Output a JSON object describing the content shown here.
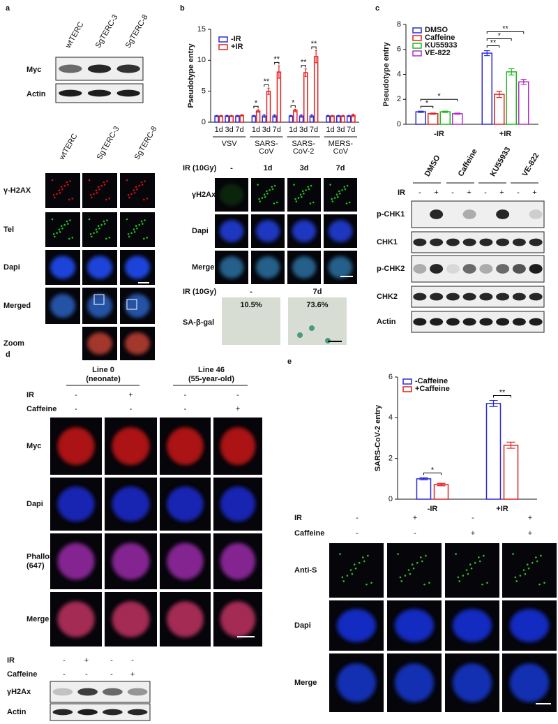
{
  "panels": {
    "a": {
      "letter": "a",
      "blot_columns": [
        "wtTERC",
        "SgTERC-3",
        "SgTERC-8"
      ],
      "blot_rows": [
        "Myc",
        "Actin"
      ],
      "image_columns": [
        "wtTERC",
        "SgTERC-3",
        "SgTERC-8"
      ],
      "image_rows": [
        "γ-H2AX",
        "Tel",
        "Dapi",
        "Merged",
        "Zoom"
      ]
    },
    "b": {
      "letter": "b",
      "ir_label": "IR (10Gy)",
      "ir_values": [
        "-",
        "1d",
        "3d",
        "7d"
      ],
      "image_rows": [
        "γH2Ax",
        "Dapi",
        "Merge"
      ],
      "sa_ir_label": "IR (10Gy)",
      "sa_ir_values": [
        "-",
        "7d"
      ],
      "sa_row": "SA-β-gal",
      "sa_percent": [
        "10.5%",
        "73.6%"
      ]
    },
    "c": {
      "letter": "c",
      "blot_columns": [
        "DMSO",
        "Caffeine",
        "KU55933",
        "VE-822"
      ],
      "ir_label": "IR",
      "ir_values": [
        "-",
        "+",
        "-",
        "+",
        "-",
        "+",
        "-",
        "+"
      ],
      "blot_rows": [
        "p-CHK1",
        "CHK1",
        "p-CHK2",
        "CHK2",
        "Actin"
      ]
    },
    "d": {
      "letter": "d",
      "headers": [
        {
          "line": "Line 0",
          "note": "(neonate)"
        },
        {
          "line": "Line 46",
          "note": "(55-year-old)"
        }
      ],
      "ir_label": "IR",
      "ir_values": [
        "-",
        "+",
        "-",
        "-"
      ],
      "caffeine_label": "Caffeine",
      "caffeine_values": [
        "-",
        "-",
        "-",
        "+"
      ],
      "image_rows": [
        [
          "Myc"
        ],
        [
          "Dapi"
        ],
        [
          "Phalloidin",
          "(647)"
        ],
        [
          "Merge"
        ]
      ],
      "blot_ir_label": "IR",
      "blot_ir_values": [
        "-",
        "+",
        "-",
        "-"
      ],
      "blot_caffeine_label": "Caffeine",
      "blot_caffeine_values": [
        "-",
        "-",
        "-",
        "+"
      ],
      "blot_rows": [
        "γH2Ax",
        "Actin"
      ]
    },
    "e": {
      "letter": "e",
      "ir_label": "IR",
      "ir_values": [
        "-",
        "+",
        "-",
        "+"
      ],
      "caffeine_label": "Caffeine",
      "caffeine_values": [
        "-",
        "-",
        "+",
        "+"
      ],
      "image_rows": [
        "Anti-S",
        "Dapi",
        "Merge"
      ]
    }
  },
  "chart_data": [
    {
      "type": "bar",
      "ylabel": "Pseudotype entry",
      "ylim": [
        0,
        15
      ],
      "yticks": [
        0,
        5,
        10,
        15
      ],
      "legend": "top-left",
      "categories": [
        "1d",
        "3d",
        "7d",
        "1d",
        "3d",
        "7d",
        "1d",
        "3d",
        "7d",
        "1d",
        "3d",
        "7d"
      ],
      "groups": [
        [
          "VSV"
        ],
        [
          "SARS-",
          "CoV"
        ],
        [
          "SARS-",
          "CoV-2"
        ],
        [
          "MERS-",
          "CoV"
        ]
      ],
      "series": [
        {
          "name": "-IR",
          "color": "#2b2bd6",
          "values": [
            1.0,
            1.0,
            1.0,
            1.0,
            1.0,
            1.0,
            1.0,
            1.0,
            1.0,
            1.0,
            1.0,
            1.0
          ],
          "errors": [
            0.1,
            0.1,
            0.1,
            0.1,
            0.2,
            0.2,
            0.1,
            0.2,
            0.2,
            0.1,
            0.1,
            0.1
          ]
        },
        {
          "name": "+IR",
          "color": "#e02020",
          "values": [
            1.0,
            1.0,
            1.1,
            1.8,
            5.0,
            8.1,
            1.9,
            8.0,
            10.6,
            1.0,
            1.0,
            1.1
          ],
          "errors": [
            0.1,
            0.1,
            0.1,
            0.2,
            0.5,
            1.0,
            0.2,
            0.6,
            1.0,
            0.1,
            0.1,
            0.2
          ]
        }
      ],
      "significance": [
        null,
        null,
        null,
        "*",
        "**",
        "**",
        "*",
        "**",
        "**",
        null,
        null,
        null
      ]
    },
    {
      "type": "bar",
      "ylabel": "Pseudotype entry",
      "ylim": [
        0,
        8
      ],
      "yticks": [
        0,
        2,
        4,
        6,
        8
      ],
      "legend": "top-left",
      "categories": [
        "-IR",
        "+IR"
      ],
      "series": [
        {
          "name": "DMSO",
          "color": "#2b2bd6",
          "values": [
            1.0,
            5.7
          ],
          "errors": [
            0.05,
            0.2
          ],
          "significance": [
            null,
            null
          ]
        },
        {
          "name": "Caffeine",
          "color": "#e02020",
          "values": [
            0.85,
            2.4
          ],
          "errors": [
            0.05,
            0.25
          ],
          "significance": [
            "*",
            "**"
          ]
        },
        {
          "name": "KU55933",
          "color": "#1fb81f",
          "values": [
            1.0,
            4.2
          ],
          "errors": [
            0.05,
            0.25
          ],
          "significance": [
            null,
            "*"
          ]
        },
        {
          "name": "VE-822",
          "color": "#b030c8",
          "values": [
            0.85,
            3.4
          ],
          "errors": [
            0.05,
            0.2
          ],
          "significance": [
            "*",
            "**"
          ]
        }
      ]
    },
    {
      "type": "bar",
      "ylabel": "SARS-CoV-2 entry",
      "ylim": [
        0,
        6
      ],
      "yticks": [
        0,
        2,
        4,
        6
      ],
      "legend": "top-left",
      "categories": [
        "-IR",
        "+IR"
      ],
      "series": [
        {
          "name": "-Caffeine",
          "color": "#2b2bd6",
          "values": [
            1.0,
            4.7
          ],
          "errors": [
            0.05,
            0.15
          ],
          "significance": [
            null,
            null
          ]
        },
        {
          "name": "+Caffeine",
          "color": "#e02020",
          "values": [
            0.72,
            2.65
          ],
          "errors": [
            0.06,
            0.15
          ],
          "significance": [
            "*",
            "**"
          ]
        }
      ]
    }
  ]
}
